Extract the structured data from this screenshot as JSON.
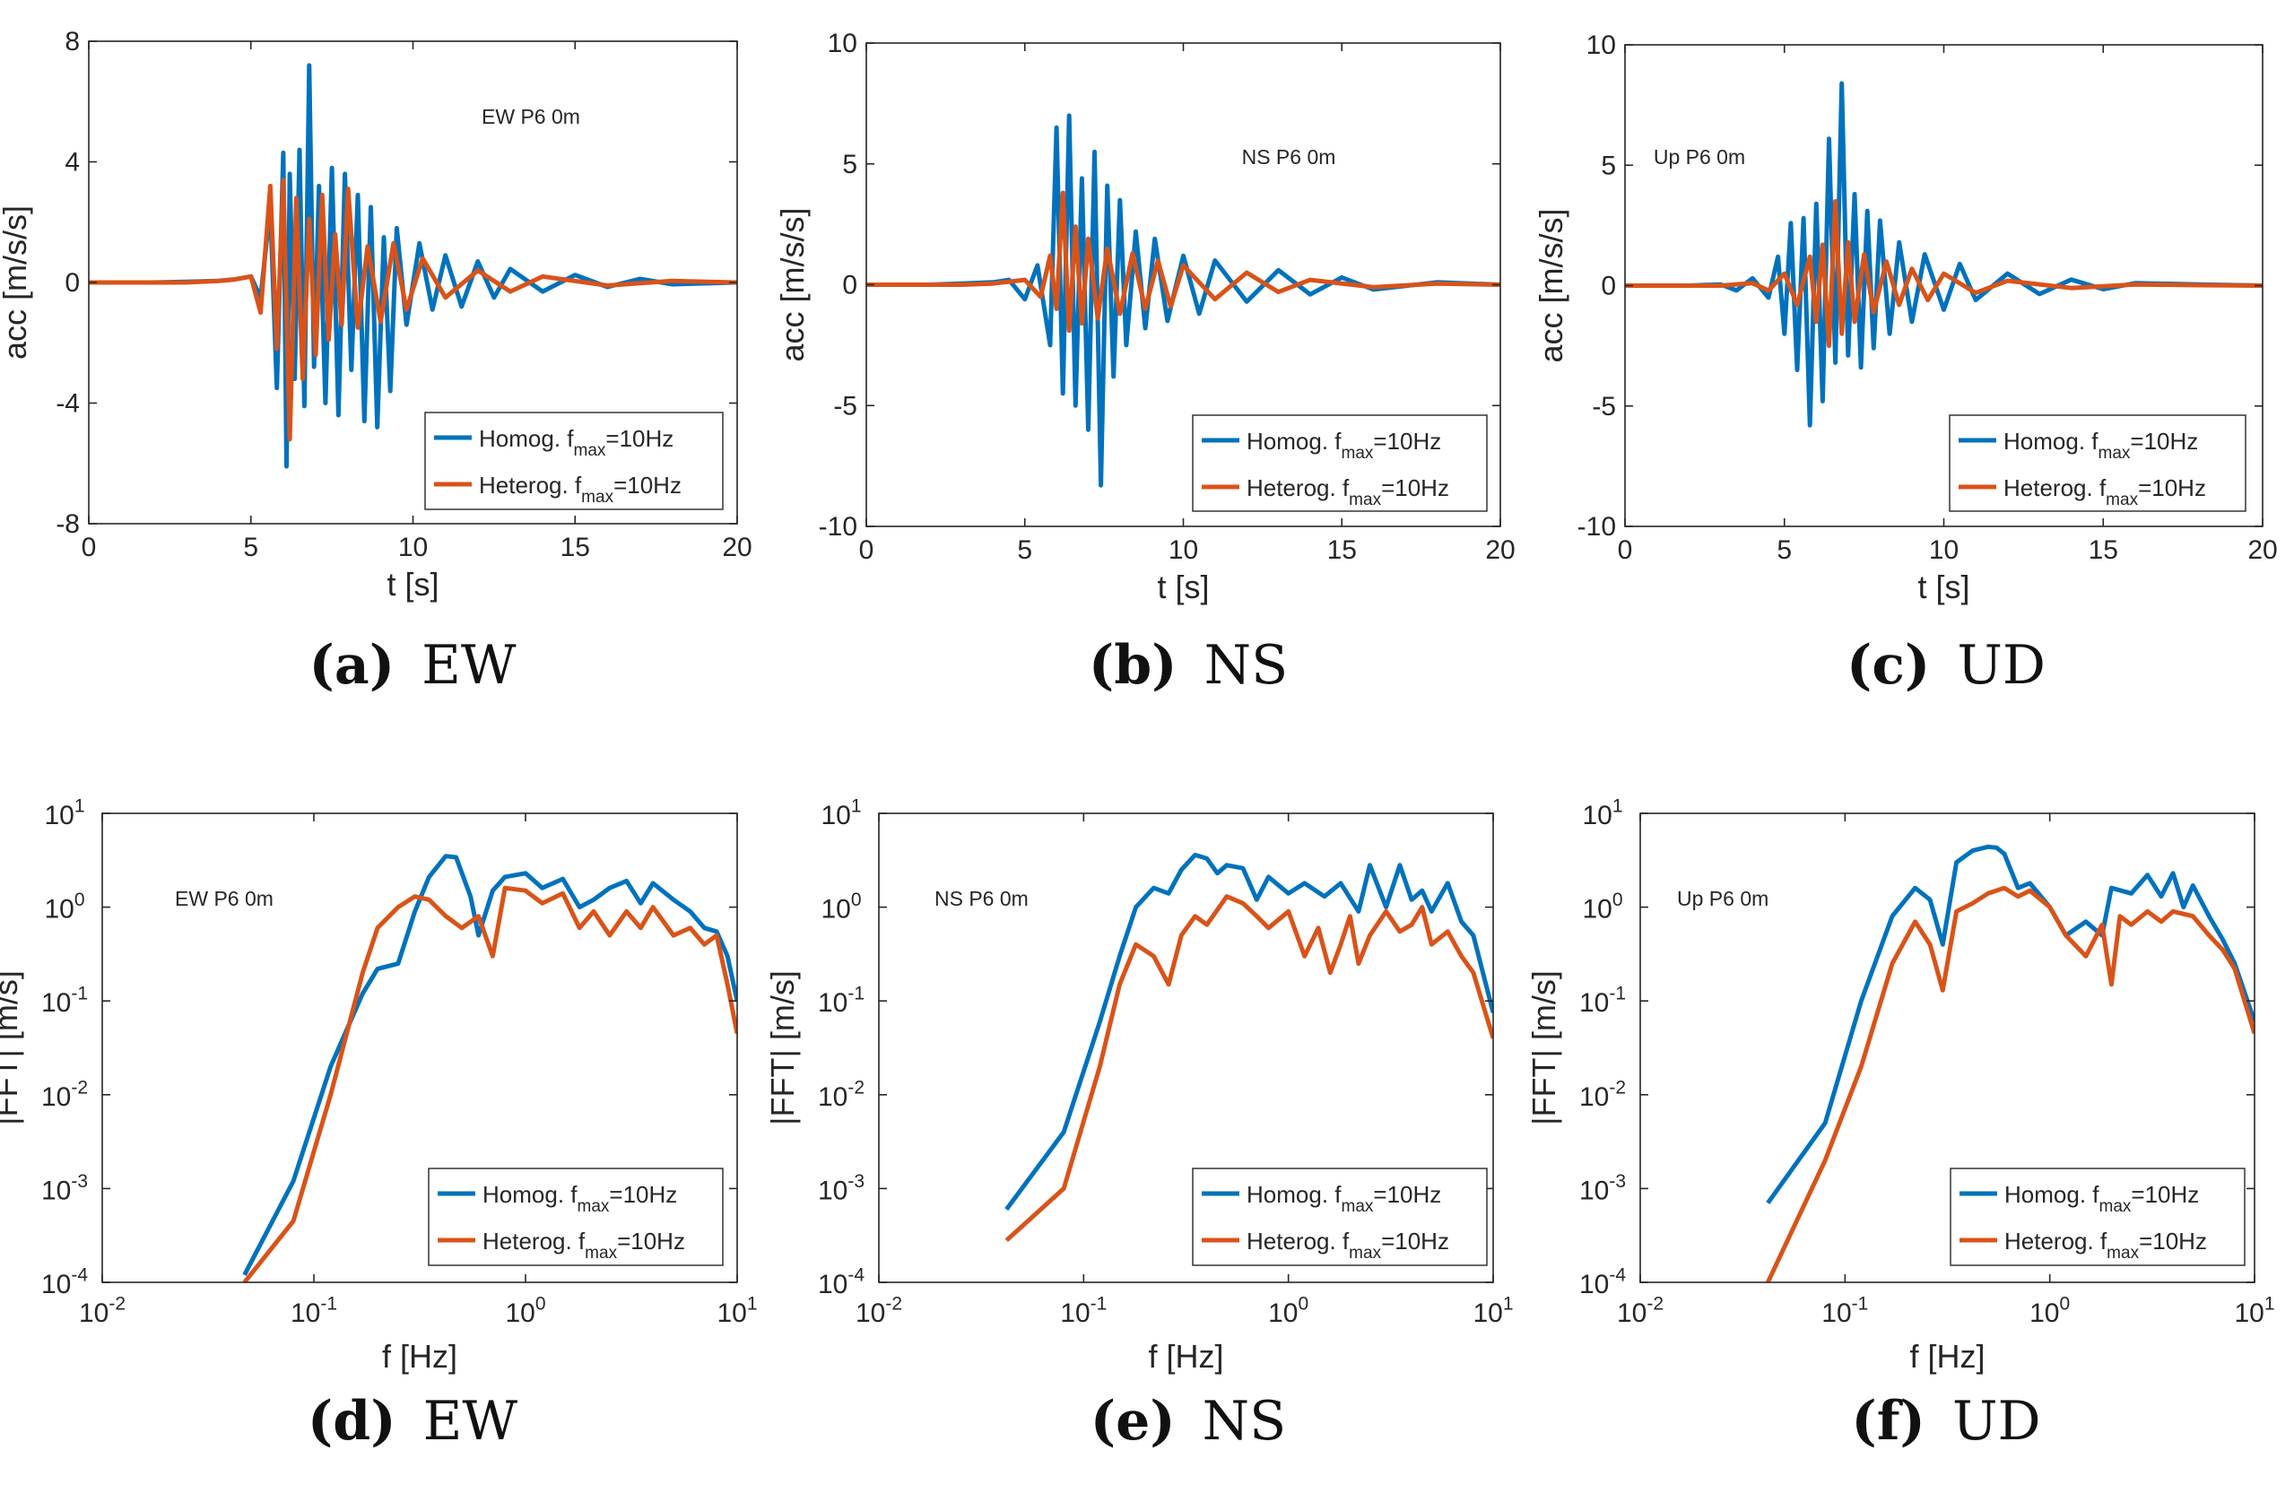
{
  "colors": {
    "homog": "#0072BD",
    "heterog": "#D95319",
    "axis": "#262626"
  },
  "legend": {
    "homog": {
      "prefix": "Homog. f",
      "sub": "max",
      "suffix": "=10Hz"
    },
    "heterog": {
      "prefix": "Heterog. f",
      "sub": "max",
      "suffix": "=10Hz"
    }
  },
  "captions": [
    {
      "label": "(a)",
      "text": "EW"
    },
    {
      "label": "(b)",
      "text": "NS"
    },
    {
      "label": "(c)",
      "text": "UD"
    },
    {
      "label": "(d)",
      "text": "EW"
    },
    {
      "label": "(e)",
      "text": "NS"
    },
    {
      "label": "(f)",
      "text": "UD"
    }
  ],
  "chart_data": [
    {
      "id": "a",
      "type": "line",
      "annotation": "EW P6 0m",
      "xlabel": "t [s]",
      "ylabel": "acc [m/s/s]",
      "xlim": [
        0,
        20
      ],
      "ylim": [
        -8,
        8
      ],
      "xticks": [
        0,
        5,
        10,
        15,
        20
      ],
      "yticks": [
        -8,
        -4,
        0,
        4,
        8
      ],
      "series": [
        {
          "name": "Homog. f_max=10Hz",
          "x": [
            0,
            2,
            3,
            4,
            4.5,
            5,
            5.3,
            5.6,
            5.8,
            6.0,
            6.1,
            6.2,
            6.35,
            6.5,
            6.65,
            6.8,
            6.95,
            7.1,
            7.3,
            7.5,
            7.7,
            7.9,
            8.1,
            8.3,
            8.5,
            8.7,
            8.9,
            9.1,
            9.3,
            9.5,
            9.8,
            10.2,
            10.6,
            11,
            11.5,
            12,
            12.5,
            13,
            14,
            15,
            16,
            17,
            18,
            20
          ],
          "y": [
            0,
            0,
            0.02,
            0.05,
            0.1,
            0.2,
            -0.5,
            2.5,
            -3.5,
            4.3,
            -6.1,
            3.6,
            -3.2,
            4.4,
            -4.1,
            7.2,
            -2.8,
            3.2,
            -4.0,
            3.8,
            -4.4,
            3.6,
            -2.9,
            2.9,
            -4.6,
            2.5,
            -4.8,
            1.5,
            -3.6,
            1.8,
            -1.4,
            1.3,
            -0.9,
            0.9,
            -0.8,
            0.7,
            -0.5,
            0.45,
            -0.3,
            0.25,
            -0.15,
            0.12,
            -0.06,
            0
          ]
        },
        {
          "name": "Heterog. f_max=10Hz",
          "x": [
            0,
            3,
            4,
            4.5,
            5,
            5.3,
            5.6,
            5.8,
            6.0,
            6.2,
            6.4,
            6.6,
            6.8,
            7.0,
            7.2,
            7.4,
            7.6,
            7.8,
            8.0,
            8.3,
            8.6,
            9.0,
            9.4,
            9.8,
            10.3,
            11,
            12,
            13,
            14,
            16,
            18,
            20
          ],
          "y": [
            0,
            0,
            0.05,
            0.1,
            0.2,
            -1.0,
            3.2,
            -2.2,
            3.4,
            -5.2,
            2.8,
            -3.2,
            2.1,
            -2.4,
            2.9,
            -1.9,
            1.6,
            -1.4,
            3.1,
            -1.5,
            1.2,
            -1.3,
            1.3,
            -0.9,
            0.8,
            -0.5,
            0.4,
            -0.3,
            0.2,
            -0.1,
            0.05,
            0
          ]
        }
      ]
    },
    {
      "id": "b",
      "type": "line",
      "annotation": "NS P6 0m",
      "xlabel": "t [s]",
      "ylabel": "acc [m/s/s]",
      "xlim": [
        0,
        20
      ],
      "ylim": [
        -10,
        10
      ],
      "xticks": [
        0,
        5,
        10,
        15,
        20
      ],
      "yticks": [
        -10,
        -5,
        0,
        5,
        10
      ],
      "series": [
        {
          "name": "Homog. f_max=10Hz",
          "x": [
            0,
            2,
            3,
            4,
            4.5,
            5,
            5.4,
            5.8,
            6.0,
            6.2,
            6.4,
            6.6,
            6.8,
            7.0,
            7.2,
            7.4,
            7.6,
            7.8,
            8.0,
            8.2,
            8.5,
            8.8,
            9.1,
            9.5,
            10,
            10.5,
            11,
            12,
            13,
            14,
            15,
            16,
            18,
            20
          ],
          "y": [
            0,
            0,
            0.05,
            0.1,
            0.2,
            -0.6,
            0.8,
            -2.5,
            6.5,
            -4.5,
            7.0,
            -5.0,
            4.4,
            -6.0,
            5.5,
            -8.3,
            4.1,
            -3.8,
            3.5,
            -2.5,
            2.2,
            -1.8,
            1.9,
            -1.5,
            1.2,
            -1.2,
            1.0,
            -0.7,
            0.6,
            -0.4,
            0.3,
            -0.2,
            0.1,
            0
          ]
        },
        {
          "name": "Heterog. f_max=10Hz",
          "x": [
            0,
            3,
            4,
            5,
            5.5,
            5.8,
            6.0,
            6.2,
            6.4,
            6.6,
            6.8,
            7.0,
            7.3,
            7.6,
            8.0,
            8.4,
            8.8,
            9.2,
            9.6,
            10,
            11,
            12,
            13,
            14,
            16,
            18,
            20
          ],
          "y": [
            0,
            0,
            0.05,
            0.2,
            -0.5,
            1.2,
            -1.0,
            3.8,
            -1.9,
            2.4,
            -1.6,
            1.9,
            -1.4,
            1.5,
            -1.2,
            1.3,
            -1.0,
            1.0,
            -0.9,
            0.8,
            -0.6,
            0.5,
            -0.3,
            0.2,
            -0.1,
            0.05,
            0
          ]
        }
      ]
    },
    {
      "id": "c",
      "type": "line",
      "annotation": "Up P6 0m",
      "xlabel": "t [s]",
      "ylabel": "acc [m/s/s]",
      "xlim": [
        0,
        20
      ],
      "ylim": [
        -10,
        10
      ],
      "xticks": [
        0,
        5,
        10,
        15,
        20
      ],
      "yticks": [
        -10,
        -5,
        0,
        5,
        10
      ],
      "series": [
        {
          "name": "Homog. f_max=10Hz",
          "x": [
            0,
            2,
            3,
            3.5,
            4,
            4.5,
            4.8,
            5.0,
            5.2,
            5.4,
            5.6,
            5.8,
            6.0,
            6.2,
            6.4,
            6.6,
            6.8,
            7.0,
            7.2,
            7.4,
            7.6,
            7.8,
            8.0,
            8.3,
            8.6,
            9.0,
            9.4,
            10,
            10.5,
            11,
            12,
            13,
            14,
            15,
            16,
            18,
            20
          ],
          "y": [
            0,
            0,
            0.05,
            -0.2,
            0.3,
            -0.5,
            1.2,
            -2.0,
            2.6,
            -3.5,
            2.8,
            -5.8,
            3.4,
            -4.8,
            6.1,
            -3.2,
            8.4,
            -2.9,
            3.8,
            -3.4,
            3.1,
            -2.6,
            2.7,
            -2.0,
            1.8,
            -1.5,
            1.3,
            -1.0,
            0.9,
            -0.6,
            0.5,
            -0.35,
            0.25,
            -0.15,
            0.1,
            0.05,
            0
          ]
        },
        {
          "name": "Heterog. f_max=10Hz",
          "x": [
            0,
            3,
            4,
            4.5,
            5,
            5.4,
            5.8,
            6.0,
            6.2,
            6.4,
            6.6,
            6.8,
            7.0,
            7.2,
            7.5,
            7.8,
            8.2,
            8.6,
            9.0,
            9.5,
            10,
            11,
            12,
            14,
            16,
            18,
            20
          ],
          "y": [
            0,
            0,
            0.1,
            -0.2,
            0.5,
            -0.8,
            1.2,
            -1.5,
            1.7,
            -2.5,
            3.5,
            -2.0,
            1.8,
            -1.5,
            1.3,
            -1.1,
            1.0,
            -0.8,
            0.7,
            -0.6,
            0.5,
            -0.3,
            0.2,
            -0.1,
            0.05,
            0.02,
            0
          ]
        }
      ]
    },
    {
      "id": "d",
      "type": "line",
      "annotation": "EW P6 0m",
      "xlabel": "f [Hz]",
      "ylabel": "|FFT| [m/s]",
      "xscale": "log",
      "yscale": "log",
      "xlim": [
        0.01,
        10
      ],
      "ylim": [
        0.0001,
        10
      ],
      "xtick_exponents": [
        -2,
        -1,
        0,
        1
      ],
      "ytick_exponents": [
        -4,
        -3,
        -2,
        -1,
        0,
        1
      ],
      "series": [
        {
          "name": "Homog. f_max=10Hz",
          "x": [
            0.047,
            0.08,
            0.12,
            0.17,
            0.2,
            0.25,
            0.3,
            0.35,
            0.42,
            0.47,
            0.55,
            0.6,
            0.7,
            0.8,
            1.0,
            1.2,
            1.5,
            1.8,
            2.1,
            2.5,
            3.0,
            3.5,
            4.0,
            5.0,
            6.0,
            7.0,
            8.0,
            9.0,
            10
          ],
          "y": [
            0.00012,
            0.0012,
            0.02,
            0.12,
            0.22,
            0.25,
            0.9,
            2.1,
            3.5,
            3.4,
            1.3,
            0.5,
            1.5,
            2.1,
            2.3,
            1.6,
            2.0,
            1.0,
            1.2,
            1.6,
            1.9,
            1.1,
            1.8,
            1.2,
            0.9,
            0.6,
            0.55,
            0.3,
            0.1
          ]
        },
        {
          "name": "Heterog. f_max=10Hz",
          "x": [
            0.047,
            0.08,
            0.12,
            0.17,
            0.2,
            0.25,
            0.3,
            0.35,
            0.42,
            0.5,
            0.6,
            0.7,
            0.8,
            1.0,
            1.2,
            1.5,
            1.8,
            2.1,
            2.5,
            3.0,
            3.5,
            4.0,
            5.0,
            6.0,
            7.0,
            8.0,
            9.0,
            10
          ],
          "y": [
            0.0001,
            0.00045,
            0.01,
            0.2,
            0.6,
            1.0,
            1.3,
            1.2,
            0.8,
            0.6,
            0.8,
            0.3,
            1.6,
            1.5,
            1.1,
            1.4,
            0.6,
            0.9,
            0.5,
            0.9,
            0.6,
            1.0,
            0.5,
            0.6,
            0.4,
            0.5,
            0.15,
            0.045
          ]
        }
      ]
    },
    {
      "id": "e",
      "type": "line",
      "annotation": "NS P6 0m",
      "xlabel": "f [Hz]",
      "ylabel": "|FFT| [m/s]",
      "xscale": "log",
      "yscale": "log",
      "xlim": [
        0.01,
        10
      ],
      "ylim": [
        0.0001,
        10
      ],
      "xtick_exponents": [
        -2,
        -1,
        0,
        1
      ],
      "ytick_exponents": [
        -4,
        -3,
        -2,
        -1,
        0,
        1
      ],
      "series": [
        {
          "name": "Homog. f_max=10Hz",
          "x": [
            0.042,
            0.08,
            0.12,
            0.15,
            0.18,
            0.22,
            0.26,
            0.3,
            0.35,
            0.4,
            0.45,
            0.5,
            0.6,
            0.7,
            0.8,
            1.0,
            1.2,
            1.5,
            1.8,
            2.2,
            2.5,
            3.0,
            3.5,
            4.0,
            4.5,
            5.0,
            6.0,
            7.0,
            8.0,
            10
          ],
          "y": [
            0.0006,
            0.004,
            0.06,
            0.3,
            1.0,
            1.6,
            1.4,
            2.5,
            3.6,
            3.3,
            2.3,
            2.8,
            2.6,
            1.2,
            2.1,
            1.4,
            1.8,
            1.3,
            1.8,
            0.9,
            2.8,
            1.0,
            2.8,
            1.2,
            1.5,
            0.9,
            1.8,
            0.7,
            0.5,
            0.075
          ]
        },
        {
          "name": "Heterog. f_max=10Hz",
          "x": [
            0.042,
            0.08,
            0.12,
            0.15,
            0.18,
            0.22,
            0.26,
            0.3,
            0.35,
            0.4,
            0.5,
            0.6,
            0.7,
            0.8,
            1.0,
            1.2,
            1.4,
            1.6,
            1.8,
            2.0,
            2.2,
            2.5,
            3.0,
            3.5,
            4.0,
            4.5,
            5.0,
            6.0,
            7.0,
            8.0,
            10
          ],
          "y": [
            0.00028,
            0.001,
            0.02,
            0.15,
            0.4,
            0.3,
            0.15,
            0.5,
            0.8,
            0.65,
            1.3,
            1.1,
            0.8,
            0.6,
            0.9,
            0.3,
            0.6,
            0.2,
            0.4,
            0.8,
            0.25,
            0.5,
            0.9,
            0.55,
            0.65,
            1.0,
            0.4,
            0.55,
            0.3,
            0.2,
            0.04
          ]
        }
      ]
    },
    {
      "id": "f",
      "type": "line",
      "annotation": "Up P6 0m",
      "xlabel": "f [Hz]",
      "ylabel": "|FFT| [m/s]",
      "xscale": "log",
      "yscale": "log",
      "xlim": [
        0.01,
        10
      ],
      "ylim": [
        0.0001,
        10
      ],
      "xtick_exponents": [
        -2,
        -1,
        0,
        1
      ],
      "ytick_exponents": [
        -4,
        -3,
        -2,
        -1,
        0,
        1
      ],
      "series": [
        {
          "name": "Homog. f_max=10Hz",
          "x": [
            0.042,
            0.08,
            0.12,
            0.17,
            0.22,
            0.26,
            0.3,
            0.35,
            0.42,
            0.5,
            0.55,
            0.6,
            0.7,
            0.8,
            1.0,
            1.2,
            1.5,
            1.8,
            2.0,
            2.5,
            3.0,
            3.5,
            4.0,
            4.5,
            5.0,
            6.0,
            7.0,
            8.0,
            10
          ],
          "y": [
            0.0007,
            0.005,
            0.1,
            0.8,
            1.6,
            1.2,
            0.4,
            3.0,
            4.0,
            4.4,
            4.3,
            3.7,
            1.6,
            1.8,
            1.0,
            0.5,
            0.7,
            0.5,
            1.6,
            1.4,
            2.2,
            1.3,
            2.3,
            1.0,
            1.7,
            0.8,
            0.45,
            0.25,
            0.06
          ]
        },
        {
          "name": "Heterog. f_max=10Hz",
          "x": [
            0.042,
            0.08,
            0.12,
            0.17,
            0.22,
            0.26,
            0.3,
            0.35,
            0.42,
            0.5,
            0.6,
            0.7,
            0.8,
            1.0,
            1.2,
            1.5,
            1.8,
            2.0,
            2.2,
            2.5,
            3.0,
            3.5,
            4.0,
            5.0,
            6.0,
            7.0,
            8.0,
            10
          ],
          "y": [
            0.0001,
            0.002,
            0.02,
            0.25,
            0.7,
            0.4,
            0.13,
            0.9,
            1.1,
            1.4,
            1.6,
            1.3,
            1.5,
            1.0,
            0.5,
            0.3,
            0.65,
            0.15,
            0.8,
            0.65,
            0.9,
            0.7,
            0.9,
            0.8,
            0.5,
            0.35,
            0.22,
            0.045
          ]
        }
      ]
    }
  ]
}
